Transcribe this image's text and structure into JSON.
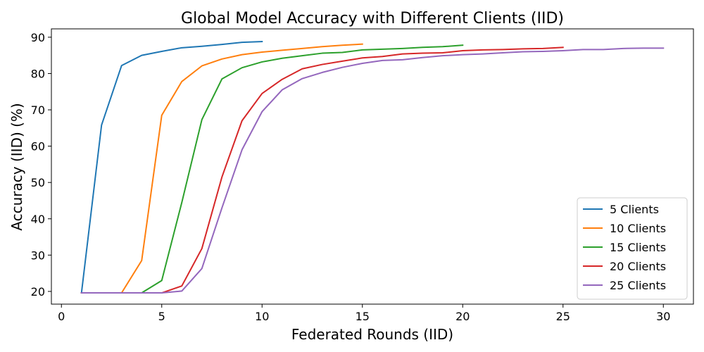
{
  "chart_data": {
    "type": "line",
    "title": "Global Model Accuracy with Different Clients (IID)",
    "xlabel": "Federated Rounds (IID)",
    "ylabel": "Accuracy (IID) (%)",
    "xlim": [
      -0.5,
      31.5
    ],
    "ylim": [
      16.5,
      92.3
    ],
    "xticks": [
      0,
      5,
      10,
      15,
      20,
      25,
      30
    ],
    "yticks": [
      20,
      30,
      40,
      50,
      60,
      70,
      80,
      90
    ],
    "grid": false,
    "legend_position": "lower-right",
    "series": [
      {
        "name": "5 Clients",
        "color": "#1f77b4",
        "x": [
          1,
          2,
          3,
          4,
          5,
          6,
          7,
          8,
          9,
          10
        ],
        "values": [
          19.6,
          65.8,
          82.2,
          85.0,
          86.1,
          87.1,
          87.5,
          88.0,
          88.6,
          88.8
        ]
      },
      {
        "name": "10 Clients",
        "color": "#ff7f0e",
        "x": [
          1,
          2,
          3,
          4,
          5,
          6,
          7,
          8,
          9,
          10,
          11,
          12,
          13,
          14,
          15
        ],
        "values": [
          19.6,
          19.6,
          19.6,
          28.5,
          68.5,
          77.8,
          82.1,
          84.0,
          85.2,
          85.9,
          86.4,
          86.9,
          87.4,
          87.8,
          88.1
        ]
      },
      {
        "name": "15 Clients",
        "color": "#2ca02c",
        "x": [
          1,
          2,
          3,
          4,
          5,
          6,
          7,
          8,
          9,
          10,
          11,
          12,
          13,
          14,
          15,
          16,
          17,
          18,
          19,
          20
        ],
        "values": [
          19.6,
          19.6,
          19.6,
          19.6,
          23.0,
          44.5,
          67.3,
          78.5,
          81.6,
          83.2,
          84.2,
          84.9,
          85.6,
          85.8,
          86.5,
          86.7,
          86.9,
          87.2,
          87.4,
          87.8
        ]
      },
      {
        "name": "20 Clients",
        "color": "#d62728",
        "x": [
          1,
          2,
          3,
          4,
          5,
          6,
          7,
          8,
          9,
          10,
          11,
          12,
          13,
          14,
          15,
          16,
          17,
          18,
          19,
          20,
          21,
          22,
          23,
          24,
          25
        ],
        "values": [
          19.6,
          19.6,
          19.6,
          19.6,
          19.6,
          21.5,
          31.8,
          51.5,
          67.0,
          74.5,
          78.4,
          81.3,
          82.5,
          83.4,
          84.3,
          84.7,
          85.4,
          85.6,
          85.7,
          86.3,
          86.5,
          86.6,
          86.8,
          86.9,
          87.2
        ]
      },
      {
        "name": "25 Clients",
        "color": "#9467bd",
        "x": [
          1,
          2,
          3,
          4,
          5,
          6,
          7,
          8,
          9,
          10,
          11,
          12,
          13,
          14,
          15,
          16,
          17,
          18,
          19,
          20,
          21,
          22,
          23,
          24,
          25,
          26,
          27,
          28,
          29,
          30
        ],
        "values": [
          19.6,
          19.6,
          19.6,
          19.6,
          19.6,
          20.1,
          26.3,
          43.0,
          59.0,
          69.5,
          75.5,
          78.6,
          80.3,
          81.7,
          82.8,
          83.6,
          83.8,
          84.4,
          84.9,
          85.2,
          85.4,
          85.7,
          86.0,
          86.1,
          86.3,
          86.6,
          86.6,
          86.9,
          87.0,
          87.0
        ]
      }
    ]
  }
}
